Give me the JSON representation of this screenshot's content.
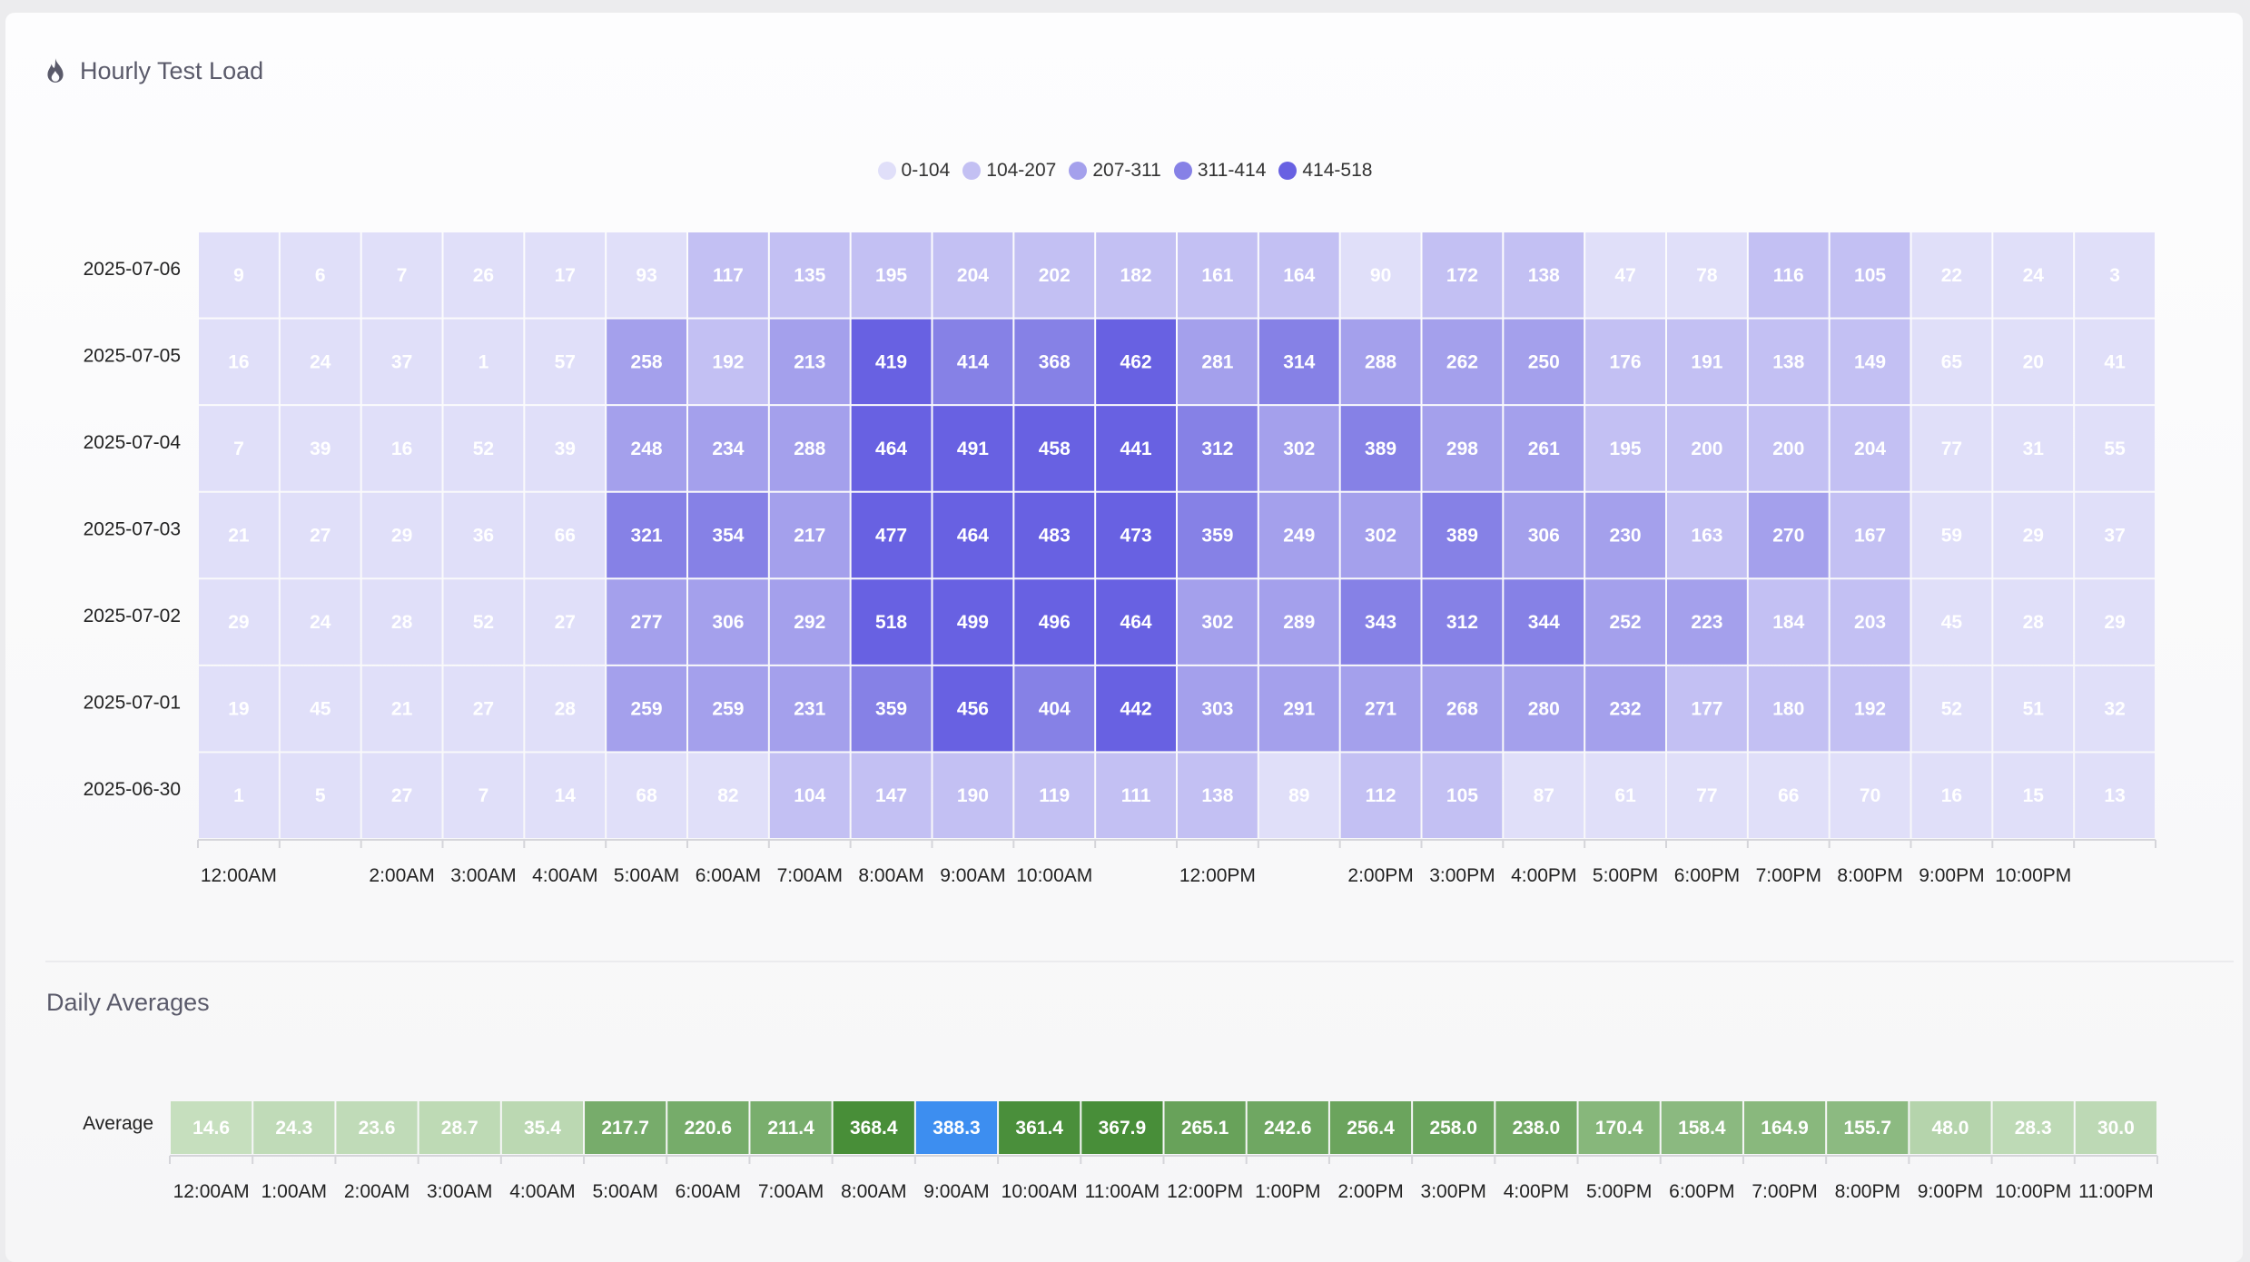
{
  "header": {
    "title": "Hourly Test Load",
    "icon": "flame-icon"
  },
  "chart_data": [
    {
      "type": "heatmap",
      "title": "Hourly Test Load",
      "legend": {
        "placement": "top-center",
        "ranges": [
          "0-104",
          "104-207",
          "207-311",
          "311-414",
          "414-518"
        ],
        "colors": [
          "#e0dff9",
          "#c3c0f3",
          "#a4a0ec",
          "#8681e6",
          "#6861e2"
        ]
      },
      "rows": [
        "2025-07-06",
        "2025-07-05",
        "2025-07-04",
        "2025-07-03",
        "2025-07-02",
        "2025-07-01",
        "2025-06-30"
      ],
      "columns": [
        "12:00AM",
        "1:00AM",
        "2:00AM",
        "3:00AM",
        "4:00AM",
        "5:00AM",
        "6:00AM",
        "7:00AM",
        "8:00AM",
        "9:00AM",
        "10:00AM",
        "11:00AM",
        "12:00PM",
        "1:00PM",
        "2:00PM",
        "3:00PM",
        "4:00PM",
        "5:00PM",
        "6:00PM",
        "7:00PM",
        "8:00PM",
        "9:00PM",
        "10:00PM",
        "11:00PM"
      ],
      "x_tick_labels": [
        "12:00AM",
        "",
        "2:00AM",
        "3:00AM",
        "4:00AM",
        "5:00AM",
        "6:00AM",
        "7:00AM",
        "8:00AM",
        "9:00AM",
        "10:00AM",
        "",
        "12:00PM",
        "",
        "2:00PM",
        "3:00PM",
        "4:00PM",
        "5:00PM",
        "6:00PM",
        "7:00PM",
        "8:00PM",
        "9:00PM",
        "10:00PM",
        ""
      ],
      "values": [
        [
          9,
          6,
          7,
          26,
          17,
          93,
          117,
          135,
          195,
          204,
          202,
          182,
          161,
          164,
          90,
          172,
          138,
          47,
          78,
          116,
          105,
          22,
          24,
          3
        ],
        [
          16,
          24,
          37,
          1,
          57,
          258,
          192,
          213,
          419,
          414,
          368,
          462,
          281,
          314,
          288,
          262,
          250,
          176,
          191,
          138,
          149,
          65,
          20,
          41
        ],
        [
          7,
          39,
          16,
          52,
          39,
          248,
          234,
          288,
          464,
          491,
          458,
          441,
          312,
          302,
          389,
          298,
          261,
          195,
          200,
          200,
          204,
          77,
          31,
          55
        ],
        [
          21,
          27,
          29,
          36,
          66,
          321,
          354,
          217,
          477,
          464,
          483,
          473,
          359,
          249,
          302,
          389,
          306,
          230,
          163,
          270,
          167,
          59,
          29,
          37
        ],
        [
          29,
          24,
          28,
          52,
          27,
          277,
          306,
          292,
          518,
          499,
          496,
          464,
          302,
          289,
          343,
          312,
          344,
          252,
          223,
          184,
          203,
          45,
          28,
          29
        ],
        [
          19,
          45,
          21,
          27,
          28,
          259,
          259,
          231,
          359,
          456,
          404,
          442,
          303,
          291,
          271,
          268,
          280,
          232,
          177,
          180,
          192,
          52,
          51,
          32
        ],
        [
          1,
          5,
          27,
          7,
          14,
          68,
          82,
          104,
          147,
          190,
          119,
          111,
          138,
          89,
          112,
          105,
          87,
          61,
          77,
          66,
          70,
          16,
          15,
          13
        ]
      ]
    },
    {
      "type": "heatmap",
      "title": "Daily Averages",
      "rows": [
        "Average"
      ],
      "columns": [
        "12:00AM",
        "1:00AM",
        "2:00AM",
        "3:00AM",
        "4:00AM",
        "5:00AM",
        "6:00AM",
        "7:00AM",
        "8:00AM",
        "9:00AM",
        "10:00AM",
        "11:00AM",
        "12:00PM",
        "1:00PM",
        "2:00PM",
        "3:00PM",
        "4:00PM",
        "5:00PM",
        "6:00PM",
        "7:00PM",
        "8:00PM",
        "9:00PM",
        "10:00PM",
        "11:00PM"
      ],
      "x_tick_labels": [
        "12:00AM",
        "1:00AM",
        "2:00AM",
        "3:00AM",
        "4:00AM",
        "5:00AM",
        "6:00AM",
        "7:00AM",
        "8:00AM",
        "9:00AM",
        "10:00AM",
        "11:00AM",
        "12:00PM",
        "1:00PM",
        "2:00PM",
        "3:00PM",
        "4:00PM",
        "5:00PM",
        "6:00PM",
        "7:00PM",
        "8:00PM",
        "9:00PM",
        "10:00PM",
        "11:00PM"
      ],
      "values": [
        [
          "14.6",
          "24.3",
          "23.6",
          "28.7",
          "35.4",
          "217.7",
          "220.6",
          "211.4",
          "368.4",
          "388.3",
          "361.4",
          "367.9",
          "265.1",
          "242.6",
          "256.4",
          "258.0",
          "238.0",
          "170.4",
          "158.4",
          "164.9",
          "155.7",
          "48.0",
          "28.3",
          "30.0"
        ]
      ],
      "highlight_color": "#3d8ef0",
      "highlight_index": 9
    }
  ],
  "averages_title": "Daily Averages"
}
